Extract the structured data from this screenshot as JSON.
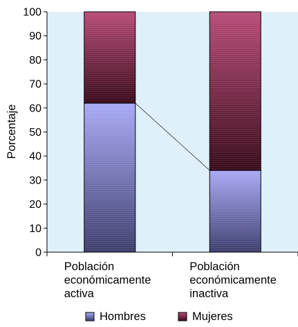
{
  "chart_data": {
    "type": "bar",
    "stacked": true,
    "percent_stacked": true,
    "title": "",
    "xlabel": "",
    "ylabel": "Porcentaje",
    "ylim": [
      0,
      100
    ],
    "yticks": [
      0,
      10,
      20,
      30,
      40,
      50,
      60,
      70,
      80,
      90,
      100
    ],
    "categories": [
      [
        "Población",
        "económicamente",
        "activa"
      ],
      [
        "Población",
        "económicamente",
        "inactiva"
      ]
    ],
    "series": [
      {
        "name": "Hombres",
        "values": [
          62,
          34
        ]
      },
      {
        "name": "Mujeres",
        "values": [
          38,
          66
        ]
      }
    ],
    "series_lines": true,
    "legend_position": "bottom",
    "grid": false,
    "colors": {
      "plot_background": "#dff0fa",
      "hombres_light": "#a9aaf6",
      "hombres_dark": "#3e3f6e",
      "mujeres_light": "#b84c78",
      "mujeres_dark": "#3a0b1c",
      "axis": "#000000"
    }
  }
}
